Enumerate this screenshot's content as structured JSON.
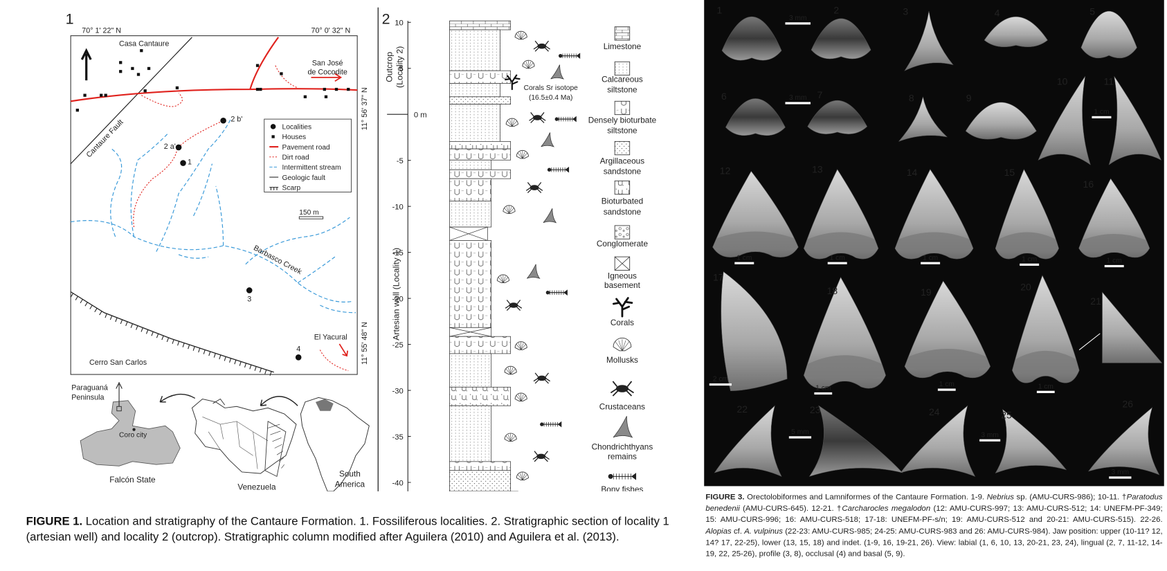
{
  "figure1": {
    "panel1": {
      "number": "1",
      "lon_left": "70° 1' 22\" N",
      "lon_right": "70° 0' 32\" N",
      "lat_top": "11° 56' 37\" N",
      "lat_bottom": "11° 55' 48\" N",
      "places": {
        "casa_cantaure": "Casa Cantaure",
        "san_jose": [
          "San José",
          "de Cocodite"
        ],
        "cantaure_fault": "Cantaure Fault",
        "barbasco_creek": "Barbasco Creek",
        "el_yacural": "El Yacural",
        "cerro_san_carlos": "Cerro San Carlos"
      },
      "localities": [
        "2 b'",
        "2 a'",
        "1",
        "3",
        "4"
      ],
      "legend": [
        "Localities",
        "Houses",
        "Pavement road",
        "Dirt road",
        "Intermittent stream",
        "Geologic fault",
        "Scarp"
      ],
      "scale": "150 m",
      "inset": {
        "paraguana": [
          "Paraguaná",
          "Peninsula"
        ],
        "coro": "Coro city",
        "falcon": "Falcón State",
        "venezuela": "Venezuela",
        "south_america": [
          "South",
          "America"
        ]
      }
    },
    "panel2": {
      "number": "2",
      "depth_ticks": [
        "10",
        "5",
        "0 m",
        "-5",
        "-10",
        "-15",
        "-20",
        "-25",
        "-30",
        "-35",
        "-40"
      ],
      "outcrop": [
        "Outcrop",
        "(Locality 2)"
      ],
      "well": "Artesian well  (Locality 1)",
      "isotope": [
        "Corals Sr isotope",
        "(16.5±0.4 Ma)"
      ],
      "legend": [
        [
          "Limestone"
        ],
        [
          "Calcareous",
          "siltstone"
        ],
        [
          "Densely bioturbate",
          "siltstone"
        ],
        [
          "Argillaceous",
          "sandstone"
        ],
        [
          "Bioturbated",
          "sandstone"
        ],
        [
          "Conglomerate"
        ],
        [
          "Igneous",
          "basement"
        ],
        [
          "Corals"
        ],
        [
          "Mollusks"
        ],
        [
          "Crustaceans"
        ],
        [
          "Chondrichthyans",
          "remains"
        ],
        [
          "Bony fishes",
          "(otoliths)"
        ]
      ]
    },
    "caption": {
      "label": "FIGURE 1.",
      "text": "Location and stratigraphy of the Cantaure Formation. 1. Fossiliferous localities. 2. Stratigraphic section of locality 1 (artesian well) and locality 2 (outcrop). Stratigraphic column modified after Aguilera (2010) and Aguilera et al. (2013)."
    }
  },
  "figure3": {
    "panel_numbers": [
      "1",
      "2",
      "3",
      "4",
      "5",
      "6",
      "7",
      "8",
      "9",
      "10",
      "11",
      "12",
      "13",
      "14",
      "15",
      "16",
      "17",
      "18",
      "19",
      "20",
      "21",
      "22",
      "23",
      "24",
      "25",
      "26"
    ],
    "scale_bars": [
      "3 mm",
      "3 mm",
      "1 cm",
      "1 cm",
      "1 cm",
      "1 cm",
      "1 cm",
      "1 cm",
      "2 cm",
      "1 cm",
      "1 cm",
      "1 cm",
      "5 mm",
      "3 mm",
      "3 mm"
    ],
    "caption": {
      "label": "FIGURE 3.",
      "segments": [
        " Orectolobiformes and Lamniformes of the Cantaure Formation. 1-9. ",
        "Nebrius",
        " sp. (AMU-CURS-986); 10-11. †",
        "Paratodus benedenii",
        " (AMU-CURS-645). 12-21. †",
        "Carcharocles megalodon",
        " (12: AMU-CURS-997; 13: AMU-CURS-512; 14: UNEFM-PF-349; 15: AMU-CURS-996; 16: AMU-CURS-518; 17-18: UNEFM-PF-s/n; 19: AMU-CURS-512 and 20-21: AMU-CURS-515). 22-26. ",
        "Alopias",
        " cf. ",
        "A. vulpinus",
        " (22-23: AMU-CURS-985; 24-25: AMU-CURS-983 and 26: AMU-CURS-984). Jaw position: upper (10-11? 12, 14? 17, 22-25), lower (13, 15, 18) and indet. (1-9, 16, 19-21, 26). View: labial (1, 6, 10, 13, 20-21, 23, 24), lingual (2, 7, 11-12, 14-19, 22, 25-26), profile (3, 8), occlusal (4) and basal (5, 9)."
      ]
    }
  }
}
